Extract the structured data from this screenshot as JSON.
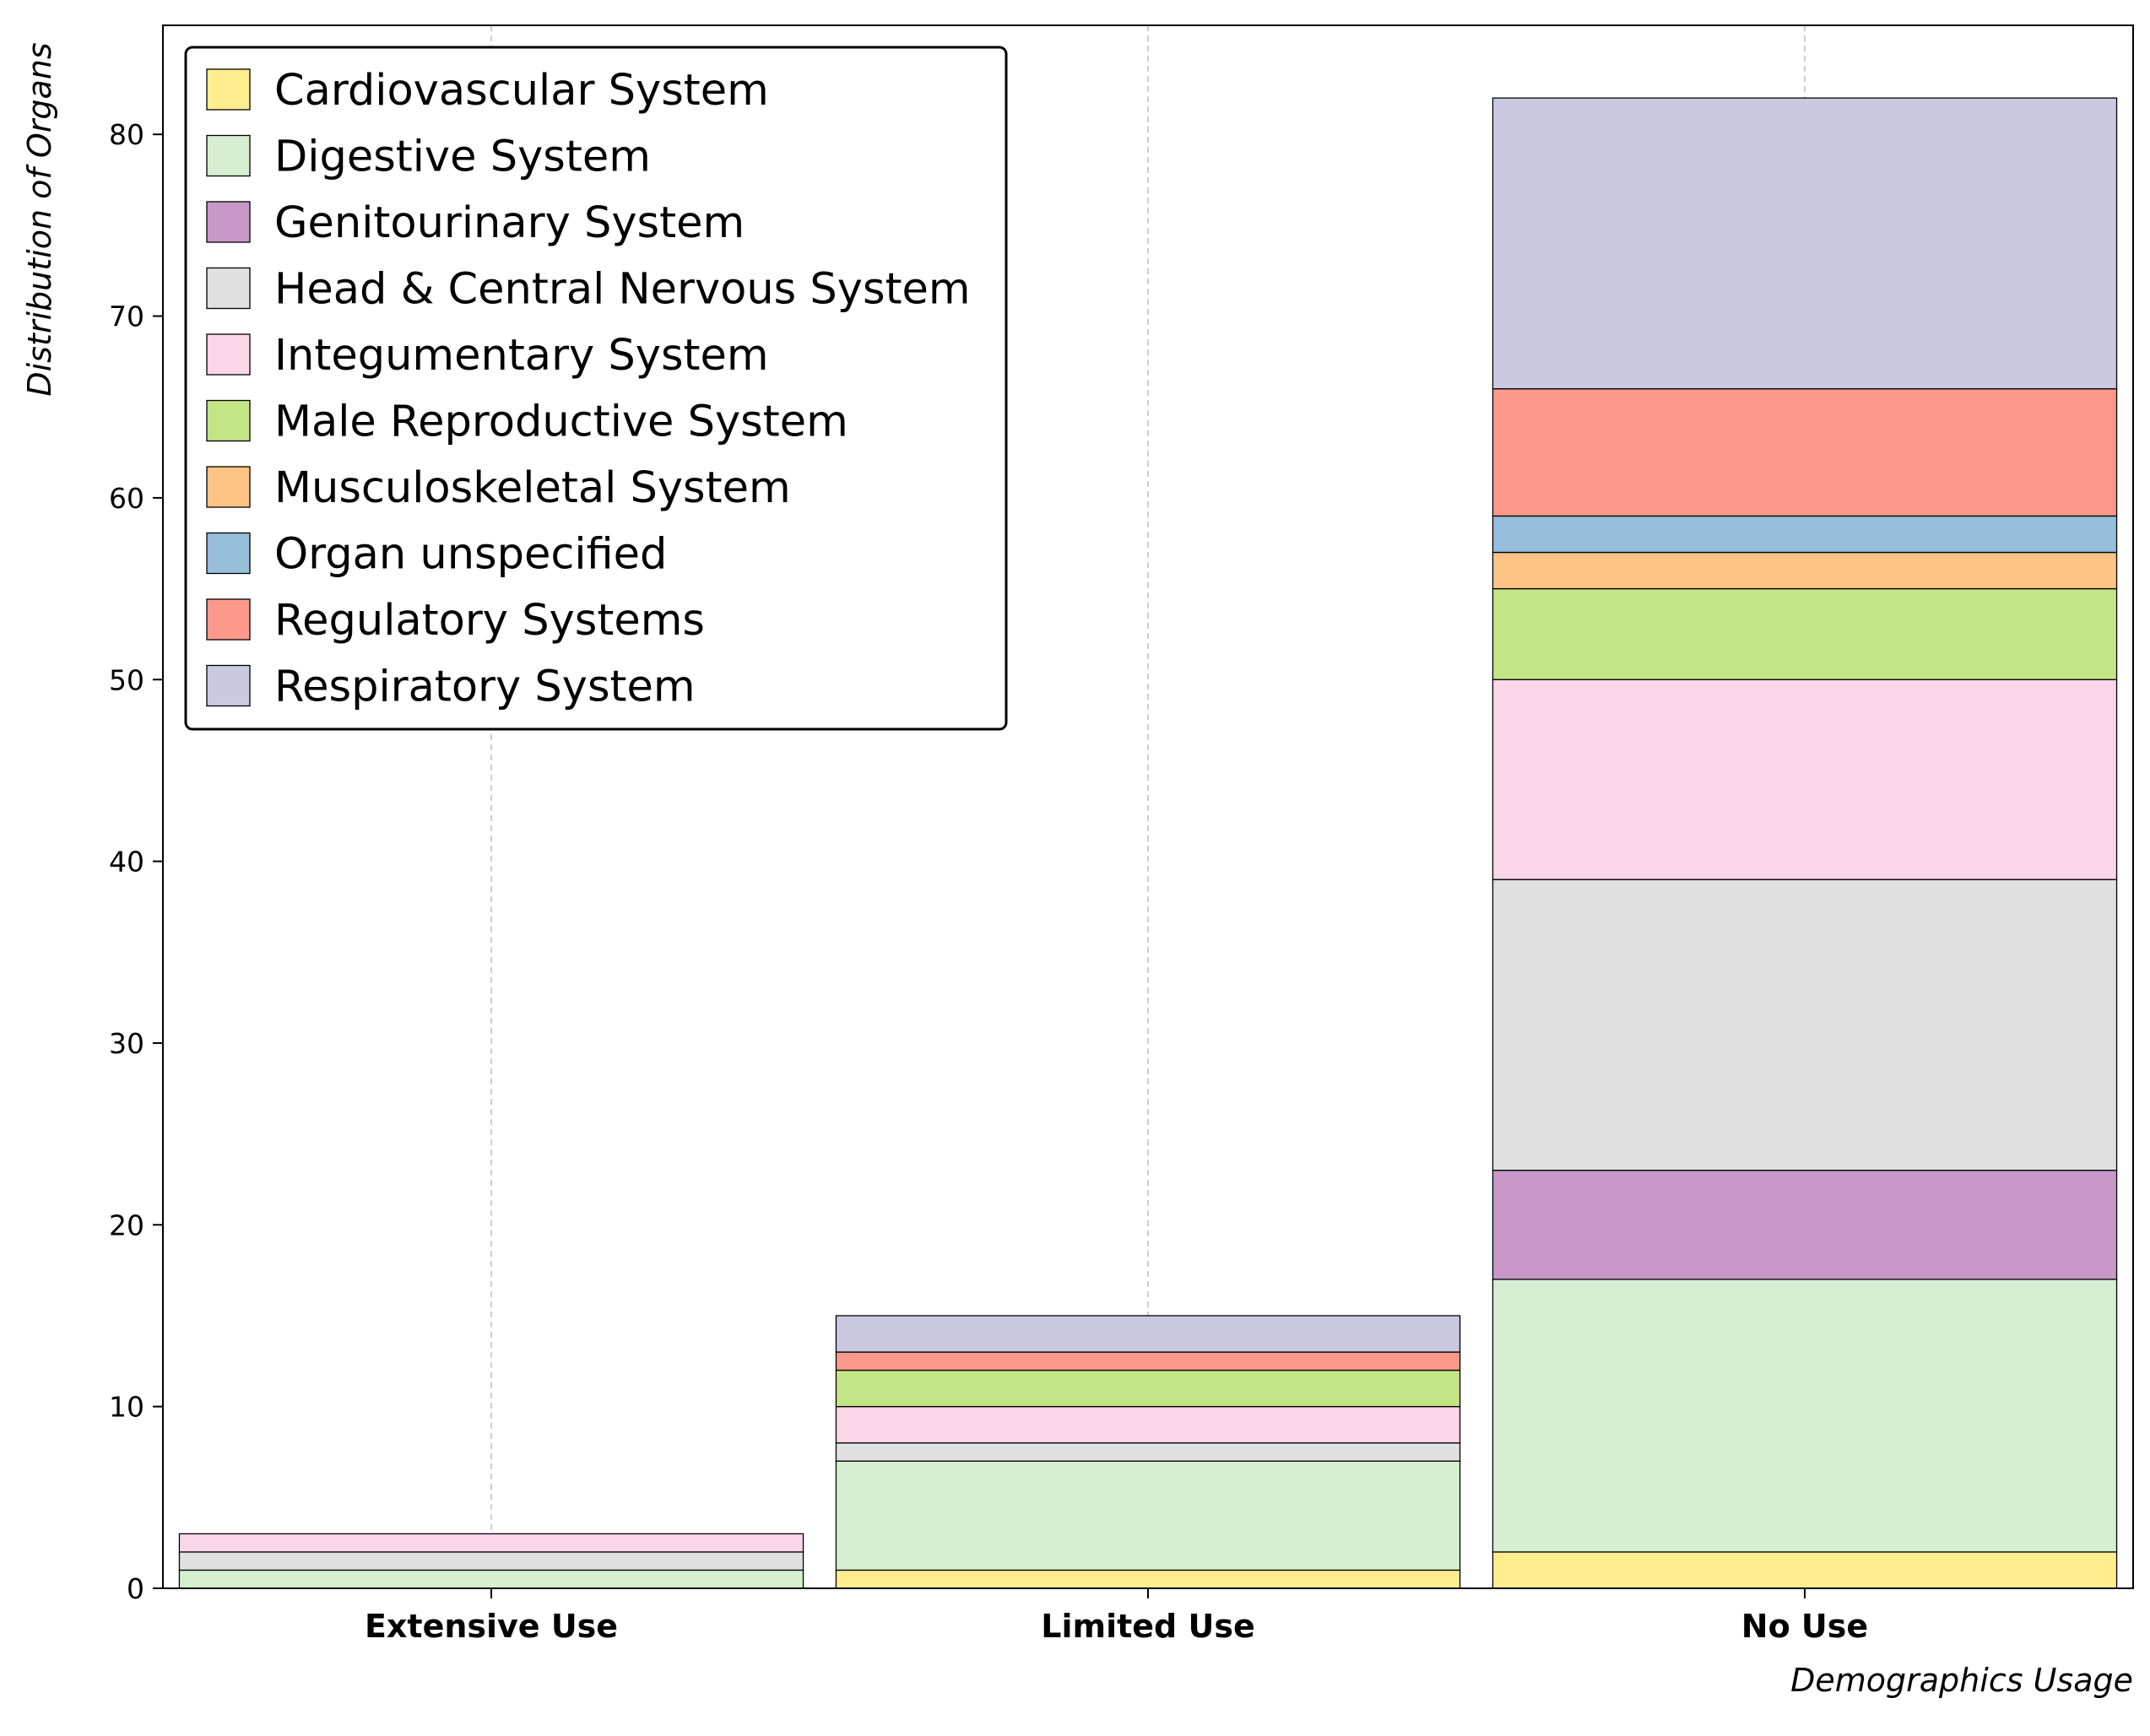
{
  "chart_data": {
    "type": "bar",
    "stacked": true,
    "title": "",
    "xlabel": "Demographics Usage",
    "ylabel": "Distribution of Organs",
    "categories": [
      "Extensive Use",
      "Limited Use",
      "No Use"
    ],
    "ylim": [
      0,
      86
    ],
    "yticks": [
      0,
      10,
      20,
      30,
      40,
      50,
      60,
      70,
      80
    ],
    "grid": "x-dashed",
    "legend_position": "top-left",
    "series": [
      {
        "name": "Cardiovascular System",
        "color": "#ffed8f",
        "values": [
          0,
          1,
          2
        ]
      },
      {
        "name": "Digestive System",
        "color": "#d5efd0",
        "values": [
          1,
          6,
          15
        ]
      },
      {
        "name": "Genitourinary System",
        "color": "#c898c8",
        "values": [
          0,
          0,
          6
        ]
      },
      {
        "name": "Head & Central Nervous System",
        "color": "#e0e0e0",
        "values": [
          1,
          1,
          16
        ]
      },
      {
        "name": "Integumentary System",
        "color": "#fbd6e8",
        "values": [
          1,
          2,
          11
        ]
      },
      {
        "name": "Male Reproductive System",
        "color": "#c4e585",
        "values": [
          0,
          2,
          5
        ]
      },
      {
        "name": "Musculoskeletal System",
        "color": "#fdc385",
        "values": [
          0,
          0,
          2
        ]
      },
      {
        "name": "Organ unspecified",
        "color": "#97bfdc",
        "values": [
          0,
          0,
          2
        ]
      },
      {
        "name": "Regulatory Systems",
        "color": "#fb998b",
        "values": [
          0,
          1,
          7
        ]
      },
      {
        "name": "Respiratory System",
        "color": "#cbc9e1",
        "values": [
          0,
          2,
          16
        ]
      }
    ]
  }
}
